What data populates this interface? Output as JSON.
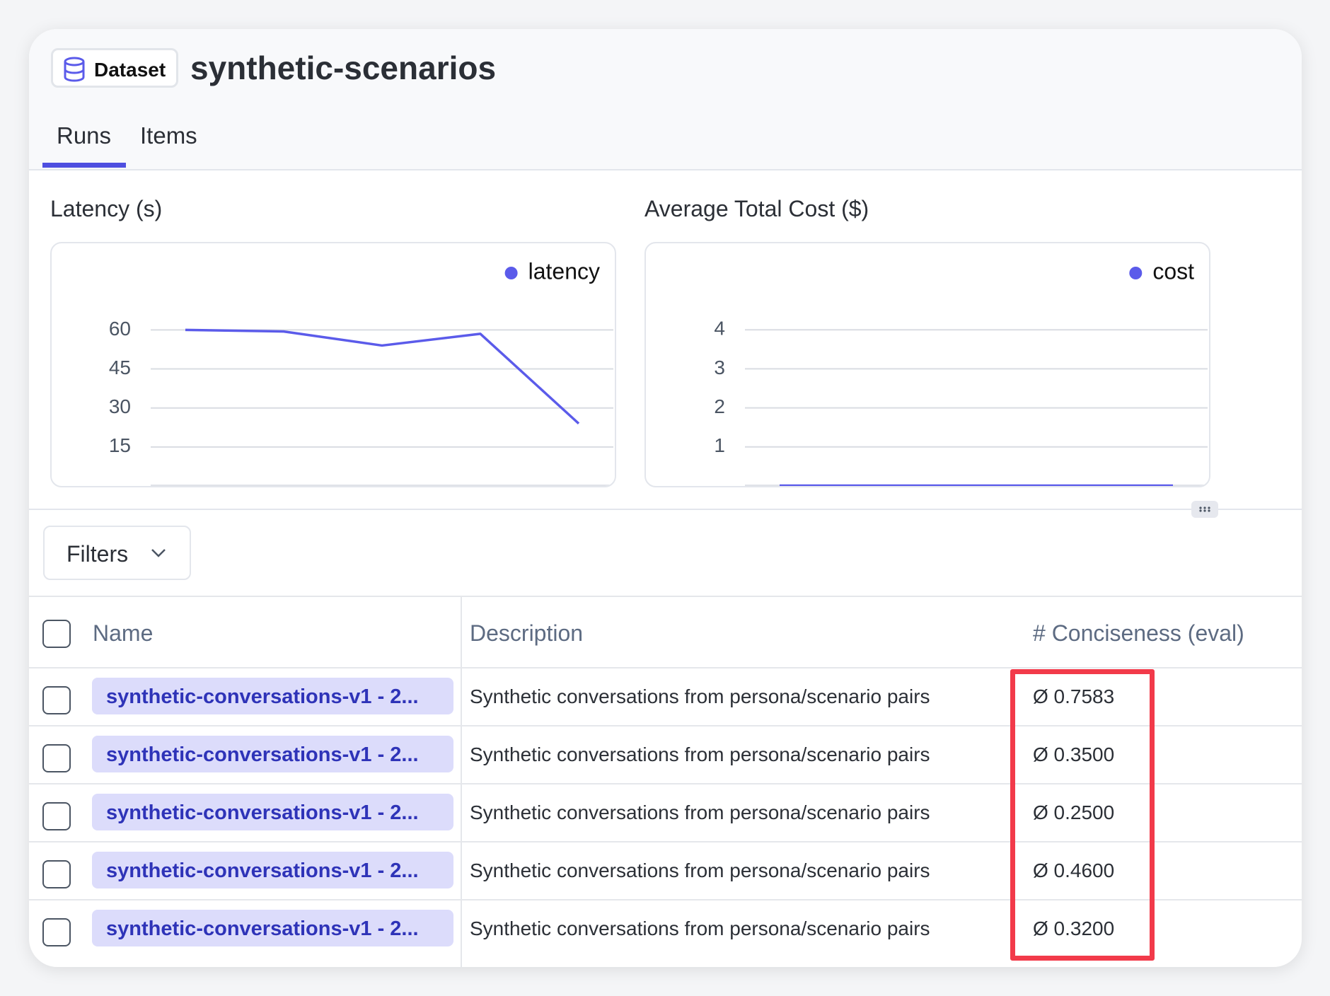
{
  "header": {
    "badge": "Dataset",
    "title": "synthetic-scenarios"
  },
  "tabs": [
    "Runs",
    "Items"
  ],
  "chart_data": [
    {
      "type": "line",
      "title": "Latency (s)",
      "series": [
        {
          "name": "latency",
          "color": "#5b5bea",
          "values": [
            60,
            59.4,
            54,
            58.5,
            24
          ]
        }
      ],
      "ylim": [
        0,
        65
      ],
      "yticks": [
        15,
        30,
        45,
        60
      ],
      "grid": true,
      "legend": "top-right"
    },
    {
      "type": "line",
      "title": "Average Total Cost ($)",
      "series": [
        {
          "name": "cost",
          "color": "#5b5bea",
          "values": [
            0.01,
            0.01,
            0.01,
            0.01,
            0.01
          ]
        }
      ],
      "ylim": [
        0,
        4.33
      ],
      "yticks": [
        1,
        2,
        3,
        4
      ],
      "grid": true,
      "legend": "top-right"
    }
  ],
  "filters": "Filters",
  "table": {
    "columns": [
      "Name",
      "Description",
      "# Conciseness (eval)"
    ],
    "rows": [
      [
        "synthetic-conversations-v1 - 2...",
        "Synthetic conversations from persona/scenario pairs",
        "Ø 0.7583"
      ],
      [
        "synthetic-conversations-v1 - 2...",
        "Synthetic conversations from persona/scenario pairs",
        "Ø 0.3500"
      ],
      [
        "synthetic-conversations-v1 - 2...",
        "Synthetic conversations from persona/scenario pairs",
        "Ø 0.2500"
      ],
      [
        "synthetic-conversations-v1 - 2...",
        "Synthetic conversations from persona/scenario pairs",
        "Ø 0.4600"
      ],
      [
        "synthetic-conversations-v1 - 2...",
        "Synthetic conversations from persona/scenario pairs",
        "Ø 0.3200"
      ]
    ]
  }
}
